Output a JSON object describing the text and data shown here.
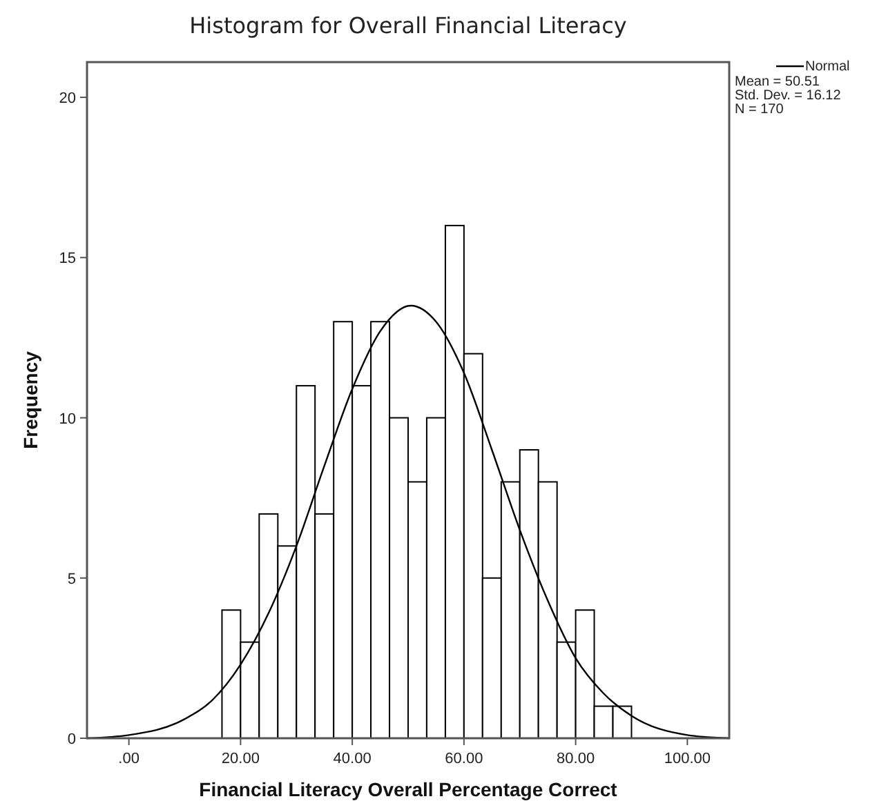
{
  "chart_data": {
    "type": "histogram",
    "title": "Histogram for Overall Financial Literacy",
    "xlabel": "Financial Literacy Overall Percentage Correct",
    "ylabel": "Frequency",
    "series": [
      {
        "color": "#ffffff",
        "bins": [
          16.67,
          20,
          23.33,
          26.67,
          30,
          33.33,
          36.67,
          40,
          43.33,
          46.67,
          50,
          53.33,
          56.67,
          60,
          63.33,
          66.67,
          70,
          73.33,
          76.67,
          80,
          83.33,
          86.67,
          90
        ],
        "values": [
          4,
          3,
          7,
          6,
          11,
          7,
          13,
          11,
          13,
          10,
          8,
          10,
          16,
          12,
          5,
          8,
          9,
          8,
          3,
          4,
          1,
          1
        ]
      },
      {
        "type": "line",
        "name": "Normal",
        "color": "#000000",
        "x": [
          -7.5,
          0,
          10,
          15,
          20,
          25,
          30,
          35,
          40,
          45,
          50.5,
          55,
          60,
          65,
          70,
          75,
          80,
          85,
          90,
          100,
          107.5
        ],
        "values": [
          0,
          0.1,
          0.6,
          1.2,
          2.3,
          3.9,
          6,
          8.5,
          10.9,
          12.7,
          13.5,
          13,
          11.4,
          9,
          6.5,
          4.3,
          2.5,
          1.4,
          0.7,
          0.1,
          0
        ]
      }
    ],
    "xlim": [
      -7.5,
      107.5
    ],
    "xticks": [
      {
        "value": 0,
        "label": ".00"
      },
      {
        "value": 20,
        "label": "20.00"
      },
      {
        "value": 40,
        "label": "40.00"
      },
      {
        "value": 60,
        "label": "60.00"
      },
      {
        "value": 80,
        "label": "80.00"
      },
      {
        "value": 100,
        "label": "100.00"
      }
    ],
    "ylim": [
      0,
      21.1
    ],
    "yticks": [
      0,
      5,
      10,
      15,
      20
    ],
    "grid": false,
    "legend": "top right",
    "annotations": [
      "Mean = 50.51",
      "Std. Dev. = 16.12",
      "N = 170"
    ]
  }
}
